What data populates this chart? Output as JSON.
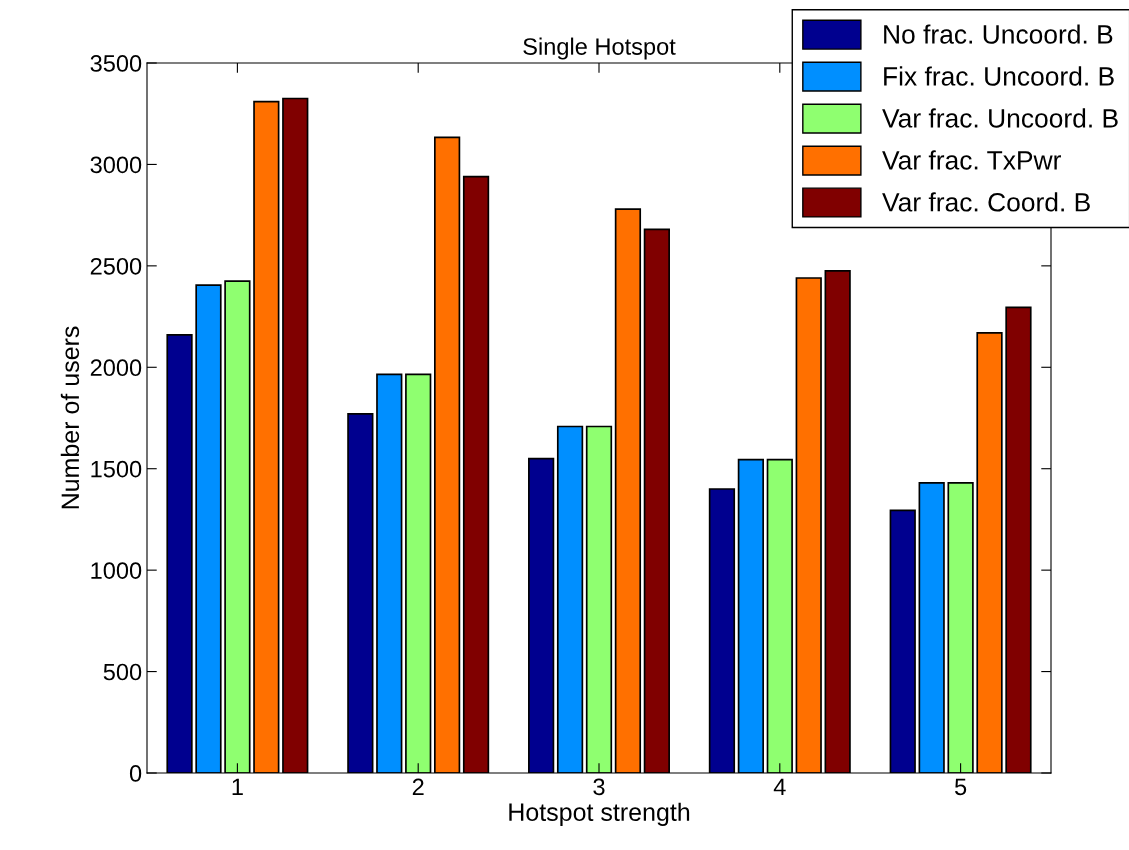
{
  "chart_data": {
    "type": "bar",
    "title": "Single Hotspot",
    "xlabel": "Hotspot strength",
    "ylabel": "Number of users",
    "categories": [
      "1",
      "2",
      "3",
      "4",
      "5"
    ],
    "series": [
      {
        "name": "No frac. Uncoord. B",
        "color": "#00008f",
        "values": [
          2160,
          1770,
          1550,
          1400,
          1295
        ]
      },
      {
        "name": "Fix frac. Uncoord. B",
        "color": "#008fff",
        "values": [
          2405,
          1965,
          1708,
          1545,
          1430
        ]
      },
      {
        "name": "Var frac. Uncoord. B",
        "color": "#8fff70",
        "values": [
          2425,
          1965,
          1708,
          1545,
          1430
        ]
      },
      {
        "name": "Var frac. TxPwr",
        "color": "#ff7000",
        "values": [
          3310,
          3133,
          2780,
          2440,
          2170
        ]
      },
      {
        "name": "Var frac. Coord. B",
        "color": "#800000",
        "values": [
          3325,
          2940,
          2680,
          2475,
          2295
        ]
      }
    ],
    "ylim": [
      0,
      3500
    ],
    "yticks": [
      0,
      500,
      1000,
      1500,
      2000,
      2500,
      3000,
      3500
    ],
    "grid": false,
    "legend": "top right"
  }
}
